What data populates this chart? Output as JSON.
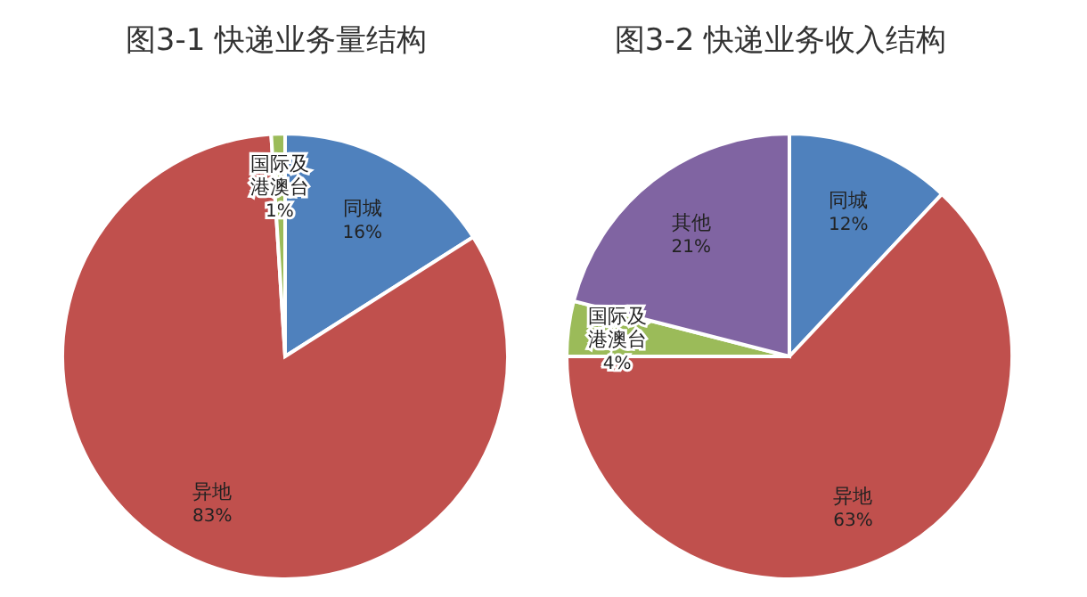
{
  "chart_data": [
    {
      "type": "pie",
      "title": "图3-1 快递业务量结构",
      "categories": [
        "同城",
        "异地",
        "国际及港澳台"
      ],
      "values": [
        16,
        83,
        1
      ],
      "value_labels": [
        "16%",
        "83%",
        "1%"
      ],
      "colors": [
        "#4f81bd",
        "#c0504d",
        "#9bbb59"
      ],
      "legend": false
    },
    {
      "type": "pie",
      "title": "图3-2 快递业务收入结构",
      "categories": [
        "同城",
        "异地",
        "国际及港澳台",
        "其他"
      ],
      "values": [
        12,
        63,
        4,
        21
      ],
      "value_labels": [
        "12%",
        "63%",
        "4%",
        "21%"
      ],
      "colors": [
        "#4f81bd",
        "#c0504d",
        "#9bbb59",
        "#8064a2"
      ],
      "legend": false
    }
  ]
}
